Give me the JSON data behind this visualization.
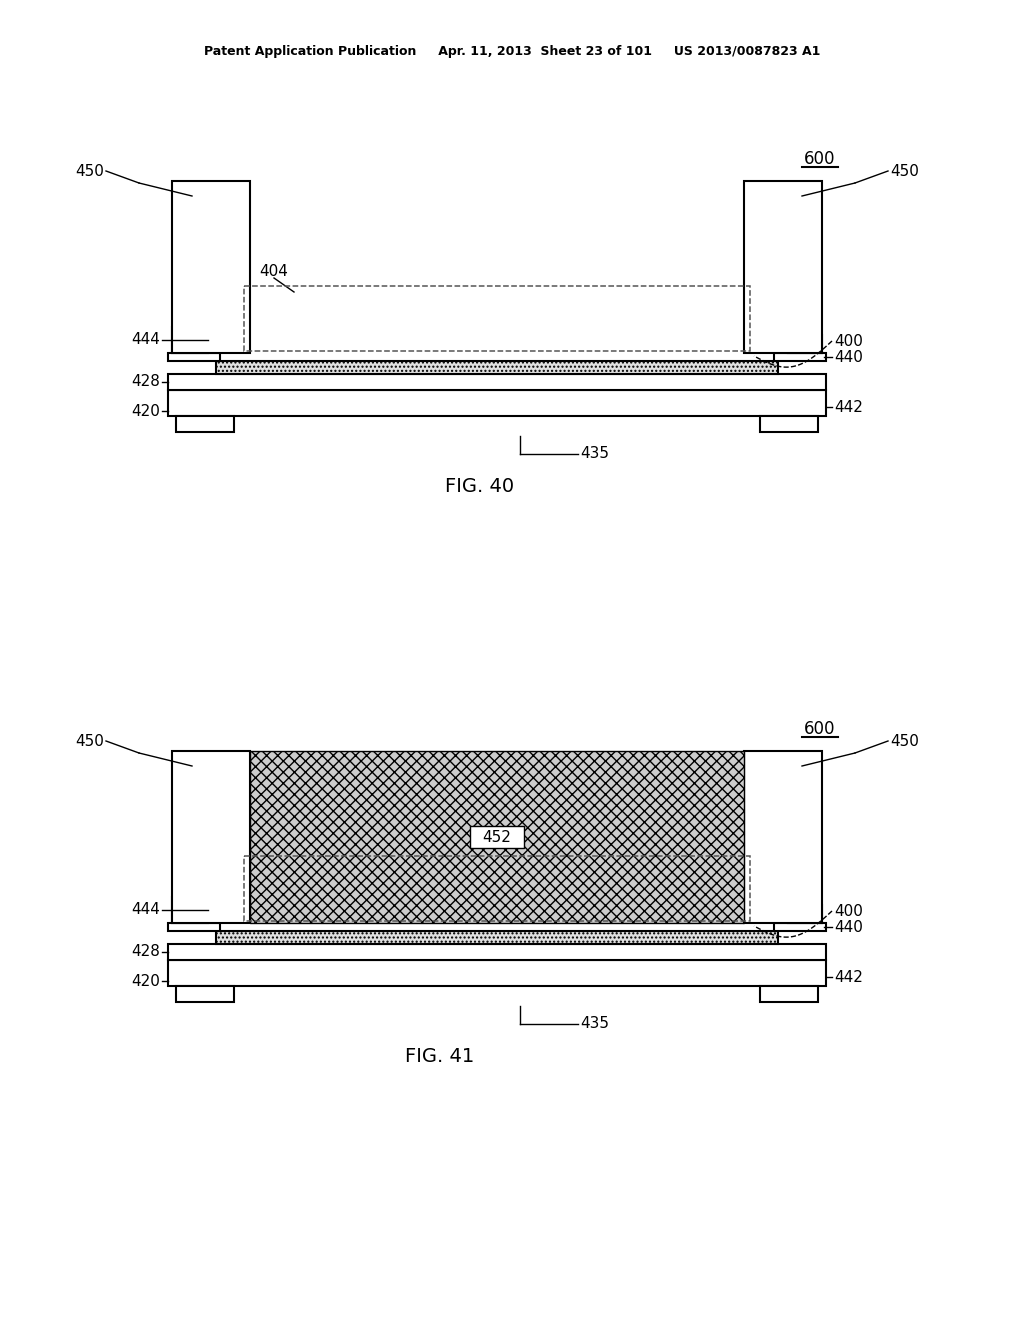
{
  "bg_color": "#ffffff",
  "line_color": "#000000",
  "header_text": "Patent Application Publication     Apr. 11, 2013  Sheet 23 of 101     US 2013/0087823 A1",
  "fig40_label": "FIG. 40",
  "fig41_label": "FIG. 41",
  "label_600": "600",
  "hatch_chip": "....",
  "hatch_fill": "xxx",
  "gray_fill": "#cccccc",
  "chip_fill": "#e0e0e0"
}
